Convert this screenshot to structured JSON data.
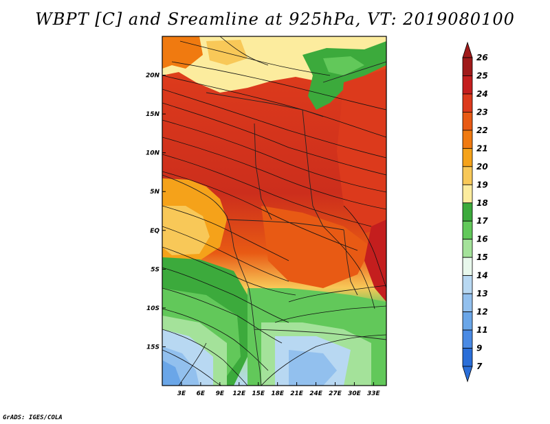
{
  "title": "WBPT [C] and Sreamline at 925hPa, VT: 2019080100",
  "credit": "GrADS: IGES/COLA",
  "map": {
    "lon_range": [
      0,
      35
    ],
    "lat_range": [
      -20,
      25
    ],
    "lon_ticks": [
      {
        "lon": 3,
        "label": "3E"
      },
      {
        "lon": 6,
        "label": "6E"
      },
      {
        "lon": 9,
        "label": "9E"
      },
      {
        "lon": 12,
        "label": "12E"
      },
      {
        "lon": 15,
        "label": "15E"
      },
      {
        "lon": 18,
        "label": "18E"
      },
      {
        "lon": 21,
        "label": "21E"
      },
      {
        "lon": 24,
        "label": "24E"
      },
      {
        "lon": 27,
        "label": "27E"
      },
      {
        "lon": 30,
        "label": "30E"
      },
      {
        "lon": 33,
        "label": "33E"
      }
    ],
    "lat_ticks": [
      {
        "lat": 20,
        "label": "20N"
      },
      {
        "lat": 15,
        "label": "15N"
      },
      {
        "lat": 10,
        "label": "10N"
      },
      {
        "lat": 5,
        "label": "5N"
      },
      {
        "lat": 0,
        "label": "EQ"
      },
      {
        "lat": -5,
        "label": "5S"
      },
      {
        "lat": -10,
        "label": "10S"
      },
      {
        "lat": -15,
        "label": "15S"
      }
    ]
  },
  "colorbar": {
    "levels": [
      "26",
      "25",
      "24",
      "23",
      "22",
      "21",
      "20",
      "19",
      "18",
      "17",
      "16",
      "15",
      "14",
      "13",
      "12",
      "11",
      "9",
      "7"
    ],
    "colors": [
      "#a01a1a",
      "#c41e1e",
      "#dc3a1c",
      "#e85a14",
      "#f07a10",
      "#f5a21a",
      "#f8c858",
      "#fcec9e",
      "#3caa3c",
      "#62c85a",
      "#a4e29a",
      "#e8f8ec",
      "#b8d8f2",
      "#92c0ee",
      "#6aa6e8",
      "#4a8ae4",
      "#2a6ed8"
    ]
  }
}
